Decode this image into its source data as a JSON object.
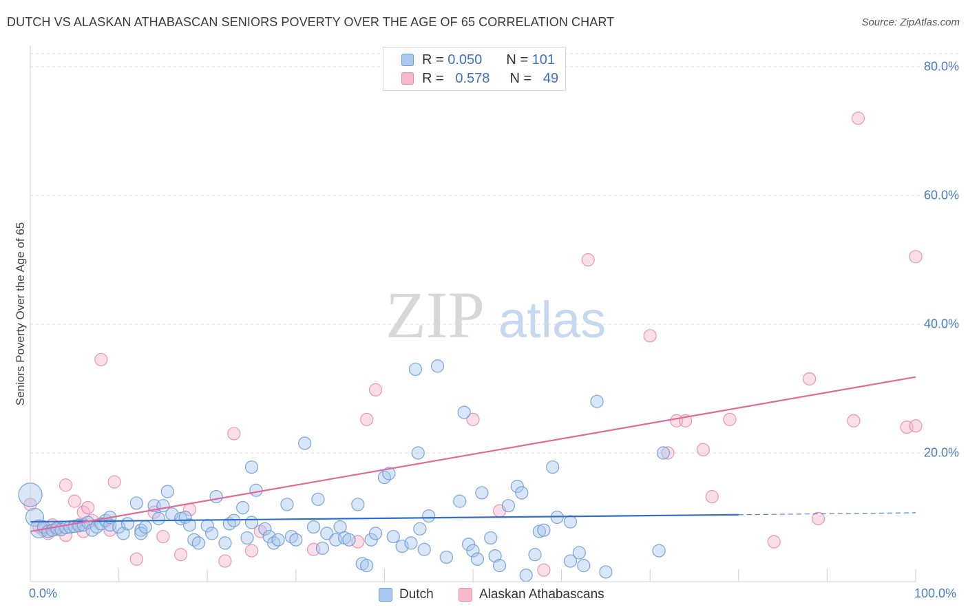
{
  "title": "DUTCH VS ALASKAN ATHABASCAN SENIORS POVERTY OVER THE AGE OF 65 CORRELATION CHART",
  "source": "Source: ZipAtlas.com",
  "watermark": {
    "zip": "ZIP",
    "atlas": "atlas"
  },
  "colors": {
    "dutch_fill": "#a9c8ee",
    "dutch_stroke": "#6b9bd6",
    "dutch_line": "#2e6fcc",
    "alaskan_fill": "#f5b8cb",
    "alaskan_stroke": "#e889a8",
    "alaskan_line": "#e26a96",
    "tick_text": "#4a7cc0",
    "grid": "#dcdcdc"
  },
  "stats": {
    "dutch": {
      "r_label": "R =",
      "r_value": "0.050",
      "n_label": "N =",
      "n_value": "101"
    },
    "alaskan": {
      "r_label": "R =",
      "r_value": "0.578",
      "n_label": "N =",
      "n_value": "49"
    }
  },
  "chart_data": {
    "type": "scatter",
    "title": "DUTCH VS ALASKAN ATHABASCAN SENIORS POVERTY OVER THE AGE OF 65 CORRELATION CHART",
    "xlabel": "",
    "ylabel": "Seniors Poverty Over the Age of 65",
    "xlim": [
      0,
      100
    ],
    "ylim": [
      0,
      80
    ],
    "x_tick_labels": [
      "0.0%",
      "100.0%"
    ],
    "y_ticks": [
      20,
      40,
      60,
      80
    ],
    "y_tick_labels": [
      "20.0%",
      "40.0%",
      "60.0%",
      "80.0%"
    ],
    "grid": true,
    "legend_position": "bottom",
    "series": [
      {
        "name": "Dutch",
        "color": "#a9c8ee",
        "trend": {
          "x": [
            0,
            80
          ],
          "y": [
            9.3,
            10.4
          ],
          "dashed_extension": {
            "x": [
              80,
              100
            ],
            "y": [
              10.4,
              10.7
            ]
          }
        },
        "points": [
          [
            0,
            13.5,
            3
          ],
          [
            0.5,
            10,
            2
          ],
          [
            1,
            8.2,
            2
          ],
          [
            1.5,
            8.5,
            1
          ],
          [
            2,
            7.8,
            1
          ],
          [
            2.5,
            8,
            1
          ],
          [
            3,
            8.3,
            1
          ],
          [
            3.5,
            8.1,
            1
          ],
          [
            4,
            8.4,
            1
          ],
          [
            4.5,
            8.5,
            1
          ],
          [
            5,
            8.6,
            1
          ],
          [
            5.5,
            8.7,
            1
          ],
          [
            6,
            8.8,
            1
          ],
          [
            6.5,
            9.2,
            1
          ],
          [
            7,
            8,
            1
          ],
          [
            7.5,
            8.5,
            1
          ],
          [
            8,
            9,
            1
          ],
          [
            8.5,
            9.5,
            1
          ],
          [
            9,
            8.8,
            1
          ],
          [
            9,
            10,
            1
          ],
          [
            10,
            8.5,
            1
          ],
          [
            10.5,
            7.5,
            1
          ],
          [
            11,
            9,
            1
          ],
          [
            12,
            12.2,
            1
          ],
          [
            12.5,
            8,
            1
          ],
          [
            12.5,
            7.5,
            1
          ],
          [
            13,
            8.5,
            1
          ],
          [
            14,
            11.8,
            1
          ],
          [
            14.5,
            9.8,
            1
          ],
          [
            15,
            11.8,
            1
          ],
          [
            15.5,
            14,
            1
          ],
          [
            16,
            10.5,
            1
          ],
          [
            17,
            9.8,
            1
          ],
          [
            17.5,
            10,
            1
          ],
          [
            18,
            8.8,
            1
          ],
          [
            18.5,
            6.5,
            1
          ],
          [
            19,
            6,
            1
          ],
          [
            20,
            8.7,
            1
          ],
          [
            20.5,
            7.5,
            1
          ],
          [
            21,
            13.2,
            1
          ],
          [
            22,
            6,
            1
          ],
          [
            22.5,
            9,
            1
          ],
          [
            23,
            9.5,
            1
          ],
          [
            24,
            11.5,
            1
          ],
          [
            24.5,
            6.8,
            1
          ],
          [
            25,
            17.8,
            1
          ],
          [
            25,
            9.2,
            1
          ],
          [
            25.5,
            14.2,
            1
          ],
          [
            26.5,
            8.2,
            1
          ],
          [
            27,
            7,
            1
          ],
          [
            27.5,
            6,
            1
          ],
          [
            28,
            6.5,
            1
          ],
          [
            29,
            12,
            1
          ],
          [
            29.5,
            7,
            1
          ],
          [
            30,
            6.5,
            1
          ],
          [
            31,
            21.5,
            1
          ],
          [
            32,
            8.5,
            1
          ],
          [
            32.5,
            12.8,
            1
          ],
          [
            33,
            5.2,
            1
          ],
          [
            33.5,
            7.5,
            1
          ],
          [
            34.5,
            6.5,
            1
          ],
          [
            35,
            8.5,
            1
          ],
          [
            35.5,
            6.8,
            1
          ],
          [
            36,
            6.5,
            1
          ],
          [
            37,
            12,
            1
          ],
          [
            37.5,
            2.8,
            1
          ],
          [
            38,
            2.5,
            1
          ],
          [
            38.5,
            6.5,
            1
          ],
          [
            39,
            7.5,
            1
          ],
          [
            40,
            16.2,
            1
          ],
          [
            40.5,
            16.8,
            1
          ],
          [
            41,
            7,
            1
          ],
          [
            42,
            5.5,
            1
          ],
          [
            43,
            6,
            1
          ],
          [
            43.5,
            33,
            1
          ],
          [
            43.8,
            20,
            1
          ],
          [
            44,
            8.2,
            1
          ],
          [
            44.5,
            5,
            1
          ],
          [
            45,
            10.2,
            1
          ],
          [
            46,
            33.5,
            1
          ],
          [
            47,
            3.8,
            1
          ],
          [
            48.5,
            12.5,
            1
          ],
          [
            49,
            26.3,
            1
          ],
          [
            49.5,
            5.8,
            1
          ],
          [
            50,
            4.8,
            1
          ],
          [
            50.5,
            3.5,
            1
          ],
          [
            51,
            13.8,
            1
          ],
          [
            52,
            6.8,
            1
          ],
          [
            52.5,
            4,
            1
          ],
          [
            53,
            2.5,
            1
          ],
          [
            54,
            11.8,
            1
          ],
          [
            55,
            14.8,
            1
          ],
          [
            55.5,
            13.8,
            1
          ],
          [
            56,
            1,
            1
          ],
          [
            57,
            4.2,
            1
          ],
          [
            57.5,
            7.8,
            1
          ],
          [
            58,
            8,
            1
          ],
          [
            59,
            17.8,
            1
          ],
          [
            59.5,
            10,
            1
          ],
          [
            61,
            3.2,
            1
          ],
          [
            61,
            9.3,
            1
          ],
          [
            62,
            4.5,
            1
          ],
          [
            62.5,
            2.5,
            1
          ],
          [
            64,
            28,
            1
          ],
          [
            65,
            1.5,
            1
          ],
          [
            71,
            4.8,
            1
          ],
          [
            71.5,
            20,
            1
          ]
        ]
      },
      {
        "name": "Alaskan Athabascans",
        "color": "#f5b8cb",
        "trend": {
          "x": [
            0,
            100
          ],
          "y": [
            7.8,
            31.8
          ]
        },
        "points": [
          [
            0,
            12,
            1
          ],
          [
            1,
            8.5,
            1
          ],
          [
            1.5,
            8,
            1
          ],
          [
            2,
            7.5,
            1
          ],
          [
            2.5,
            8.8,
            1
          ],
          [
            3,
            8.1,
            1
          ],
          [
            4,
            7.2,
            1
          ],
          [
            4,
            15,
            1
          ],
          [
            5,
            12.5,
            1
          ],
          [
            5.5,
            8.8,
            1
          ],
          [
            6,
            7.8,
            1
          ],
          [
            6,
            10.8,
            1
          ],
          [
            6.5,
            11.5,
            1
          ],
          [
            7,
            9.5,
            1
          ],
          [
            8,
            34.5,
            1
          ],
          [
            9,
            8,
            1
          ],
          [
            9.5,
            15.5,
            1
          ],
          [
            12,
            3.5,
            1
          ],
          [
            14,
            10.8,
            1
          ],
          [
            15,
            7,
            1
          ],
          [
            17,
            4.2,
            1
          ],
          [
            18,
            11.2,
            1
          ],
          [
            22,
            3.2,
            1
          ],
          [
            23,
            23,
            1
          ],
          [
            25,
            4.8,
            1
          ],
          [
            26,
            7.8,
            1
          ],
          [
            32,
            5,
            1
          ],
          [
            37,
            6.2,
            1
          ],
          [
            38,
            25.2,
            1
          ],
          [
            39,
            29.8,
            1
          ],
          [
            50,
            25.2,
            1
          ],
          [
            53,
            11,
            1
          ],
          [
            58,
            1.8,
            1
          ],
          [
            63,
            50,
            1
          ],
          [
            70,
            38.2,
            1
          ],
          [
            72,
            20,
            1
          ],
          [
            73,
            25,
            1
          ],
          [
            74,
            25,
            1
          ],
          [
            76,
            20.5,
            1
          ],
          [
            77,
            13.2,
            1
          ],
          [
            79,
            25.2,
            1
          ],
          [
            84,
            6.2,
            1
          ],
          [
            88,
            31.5,
            1
          ],
          [
            89,
            9.8,
            1
          ],
          [
            93,
            25,
            1
          ],
          [
            93.5,
            72,
            1
          ],
          [
            99,
            24,
            1
          ],
          [
            100,
            50.5,
            1
          ],
          [
            100,
            24.2,
            1
          ]
        ]
      }
    ]
  },
  "legend": {
    "dutch": "Dutch",
    "alaskan": "Alaskan Athabascans"
  }
}
